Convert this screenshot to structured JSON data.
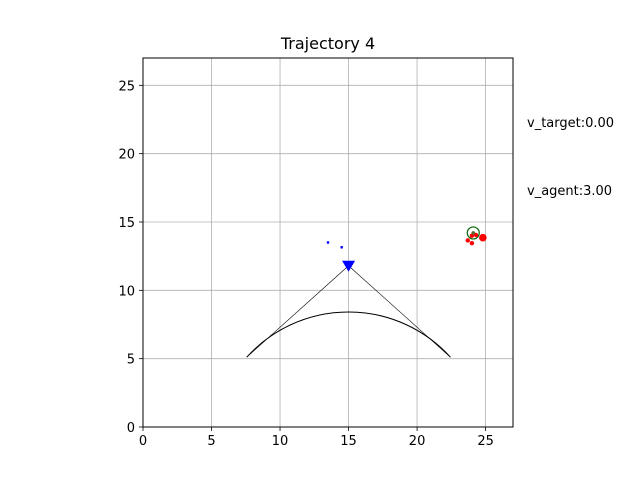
{
  "chart_data": {
    "type": "scatter",
    "title": "Trajectory 4",
    "xlabel": "",
    "ylabel": "",
    "xlim": [
      0,
      27
    ],
    "ylim": [
      0,
      27
    ],
    "xticks": [
      0,
      5,
      10,
      15,
      20,
      25
    ],
    "yticks": [
      0,
      5,
      10,
      15,
      20,
      25
    ],
    "grid": true,
    "annotations": {
      "v_target": "v_target:0.00",
      "v_agent": "v_agent:3.00"
    },
    "agent": {
      "position": [
        15.0,
        11.8
      ],
      "marker": "triangle-down",
      "color": "#0000ff",
      "trail": [
        [
          13.5,
          13.5
        ],
        [
          14.5,
          13.15
        ]
      ]
    },
    "sensing_sector": {
      "center": [
        15.0,
        11.8
      ],
      "radius": 10.0,
      "start_angle_deg": 222,
      "end_angle_deg": 318,
      "color": "#000000"
    },
    "target": {
      "position": [
        24.1,
        14.2
      ],
      "circle_color": "#006400",
      "color": "#ff0000",
      "points": [
        [
          24.0,
          14.0
        ],
        [
          24.8,
          13.85
        ],
        [
          23.7,
          13.65
        ],
        [
          24.0,
          13.45
        ],
        [
          24.3,
          14.05
        ]
      ]
    }
  }
}
